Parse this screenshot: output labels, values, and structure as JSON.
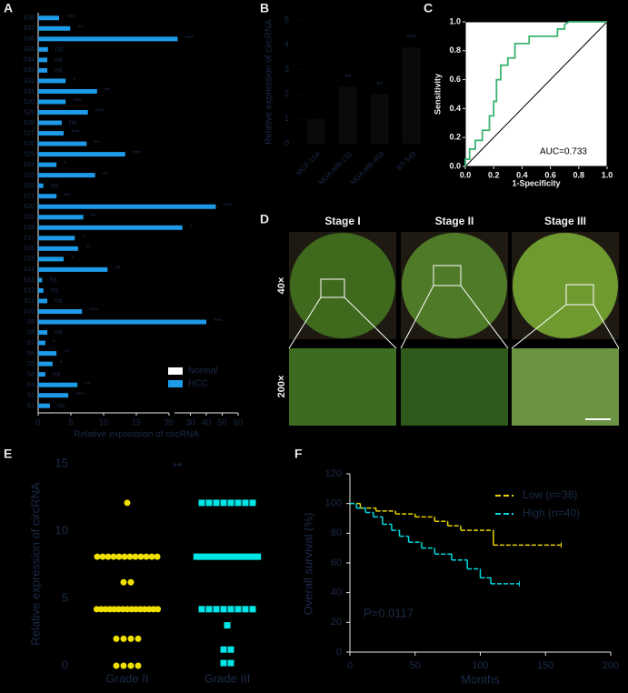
{
  "panel_labels": [
    "A",
    "B",
    "C",
    "D",
    "E",
    "F"
  ],
  "micrographs": {
    "stages": [
      "Stage I",
      "Stage II",
      "Stage III"
    ],
    "magnifications": [
      "40×",
      "200×"
    ]
  },
  "chart_data": [
    {
      "type": "barh",
      "xlabel": "Relative expression of circRNA",
      "categories": [
        "S1",
        "S2",
        "S3",
        "S4",
        "S5",
        "S6",
        "S7",
        "S8",
        "S9",
        "S10",
        "S11",
        "S12",
        "S13",
        "S14",
        "S15",
        "S16",
        "S17",
        "S18",
        "S19",
        "S20",
        "S21",
        "S22",
        "S23",
        "S24",
        "S25",
        "S26",
        "S27",
        "S28",
        "S29",
        "S30",
        "S31",
        "S32",
        "S33",
        "S34",
        "S35",
        "S36",
        "S37",
        "S38"
      ],
      "values": [
        1.8,
        4.6,
        6,
        1.1,
        2.2,
        2.8,
        1.1,
        1.4,
        40,
        6.7,
        1.4,
        0.8,
        0.6,
        10.6,
        3.9,
        6.1,
        5.6,
        25,
        6.9,
        46,
        2.8,
        0.8,
        8.7,
        2.8,
        13.3,
        7.4,
        3.9,
        3.6,
        7.6,
        4.2,
        9,
        4.2,
        1.4,
        1.4,
        1.5,
        22,
        4.9,
        3.2
      ],
      "significance": [
        "ns",
        "***",
        "**",
        "ns",
        "*",
        "**",
        "*",
        "ns",
        "***",
        "***",
        "ns",
        "ns",
        "ns",
        "**",
        "*",
        "**",
        "*",
        "*",
        "**",
        "***",
        "**",
        "ns",
        "**",
        "*",
        "***",
        "**",
        "***",
        "ns",
        "***",
        "***",
        "**",
        "*",
        "ns",
        "ns",
        "ns",
        "***",
        "**",
        "***"
      ],
      "color": "#1e9be8",
      "legend": [
        "Normal",
        "HCC"
      ],
      "xlim": [
        0,
        60
      ],
      "x_break": 20,
      "xticks": [
        0,
        5,
        10,
        15,
        20,
        30,
        40,
        50,
        60
      ]
    },
    {
      "type": "bar",
      "ylabel": "Relative expression of circRNA",
      "categories": [
        "MCF-10A",
        "MDA-MB-231",
        "MDA-MB-468",
        "BT-549"
      ],
      "values": [
        1,
        2.3,
        2,
        3.9
      ],
      "significance": [
        "**",
        "**",
        "***"
      ],
      "color": "#0a0a0a",
      "ylim": [
        0,
        5
      ],
      "yticks": [
        0,
        1,
        2,
        3,
        4,
        5
      ]
    },
    {
      "type": "roc",
      "xlabel": "1-Specificity",
      "ylabel": "Sensitivity",
      "annotation": "AUC=0.733",
      "color": "#3cb371",
      "x": [
        0,
        0,
        0.03,
        0.03,
        0.07,
        0.07,
        0.12,
        0.12,
        0.17,
        0.17,
        0.2,
        0.2,
        0.22,
        0.22,
        0.25,
        0.25,
        0.3,
        0.3,
        0.35,
        0.35,
        0.45,
        0.45,
        0.65,
        0.65,
        0.7,
        0.7,
        0.73,
        1
      ],
      "y": [
        0,
        0.05,
        0.05,
        0.12,
        0.12,
        0.18,
        0.18,
        0.25,
        0.25,
        0.35,
        0.35,
        0.45,
        0.45,
        0.6,
        0.6,
        0.7,
        0.7,
        0.75,
        0.75,
        0.85,
        0.85,
        0.9,
        0.9,
        0.95,
        0.95,
        0.98,
        1,
        1
      ],
      "xlim": [
        0,
        1
      ],
      "ylim": [
        0,
        1
      ],
      "xticks": [
        {
          "value": 0,
          "label": "0.0"
        },
        0.2,
        0.4,
        0.6,
        0.8,
        {
          "value": 1,
          "label": "1.0"
        }
      ],
      "yticks": [
        {
          "value": 0,
          "label": "0.0"
        },
        0.2,
        0.4,
        0.6,
        0.8,
        {
          "value": 1,
          "label": "1.0"
        }
      ]
    },
    {
      "type": "strip",
      "ylabel": "Relative expression of circRNA",
      "annotation": "**",
      "categories": [
        "Grade II",
        "Grade III"
      ],
      "series": [
        {
          "name": "Grade II",
          "color": "#f0e000",
          "values": [
            12.1,
            8.1,
            8.1,
            8.1,
            8.1,
            8.1,
            8.1,
            8.1,
            8.1,
            8.1,
            8.1,
            8.1,
            8.1,
            6.2,
            6.2,
            4.2,
            4.2,
            4.2,
            4.2,
            4.2,
            4.2,
            4.2,
            4.2,
            4.2,
            4.2,
            4.2,
            4.2,
            4.2,
            4.2,
            4.2,
            2,
            2,
            2,
            2,
            0,
            0,
            0,
            0
          ]
        },
        {
          "name": "Grade III",
          "color": "#00e5e5",
          "values": [
            12.1,
            12.1,
            12.1,
            12.1,
            12.1,
            12.1,
            12.1,
            12.1,
            8.1,
            8.1,
            8.1,
            8.1,
            8.1,
            8.1,
            8.1,
            8.1,
            8.1,
            8.1,
            8.1,
            8.1,
            8.1,
            8.1,
            8.1,
            8.1,
            4.2,
            4.2,
            4.2,
            4.2,
            4.2,
            4.2,
            4.2,
            4.2,
            3,
            1.2,
            1.2,
            0.2,
            0.2
          ]
        }
      ],
      "ylim": [
        0,
        15
      ],
      "yticks": [
        0,
        5,
        10,
        15
      ]
    },
    {
      "type": "km",
      "xlabel": "Months",
      "ylabel": "Overall survival (%)",
      "annotation": "P=0.0117",
      "series": [
        {
          "name": "Low (n=38)",
          "color": "#e6d200",
          "x": [
            0,
            8,
            20,
            35,
            50,
            65,
            75,
            85,
            110,
            162
          ],
          "values": [
            100,
            97,
            95,
            93,
            91,
            88,
            85,
            82,
            72,
            72
          ]
        },
        {
          "name": "High (n=40)",
          "color": "#00d8e0",
          "x": [
            0,
            5,
            12,
            18,
            25,
            32,
            38,
            45,
            55,
            65,
            78,
            90,
            100,
            108,
            130
          ],
          "values": [
            100,
            97,
            94,
            91,
            86,
            82,
            78,
            74,
            70,
            66,
            62,
            56,
            50,
            46,
            46
          ]
        }
      ],
      "xlim": [
        0,
        200
      ],
      "ylim": [
        0,
        120
      ],
      "xticks": [
        0,
        50,
        100,
        150,
        200
      ],
      "yticks": [
        0,
        20,
        40,
        60,
        80,
        100,
        120
      ]
    }
  ]
}
